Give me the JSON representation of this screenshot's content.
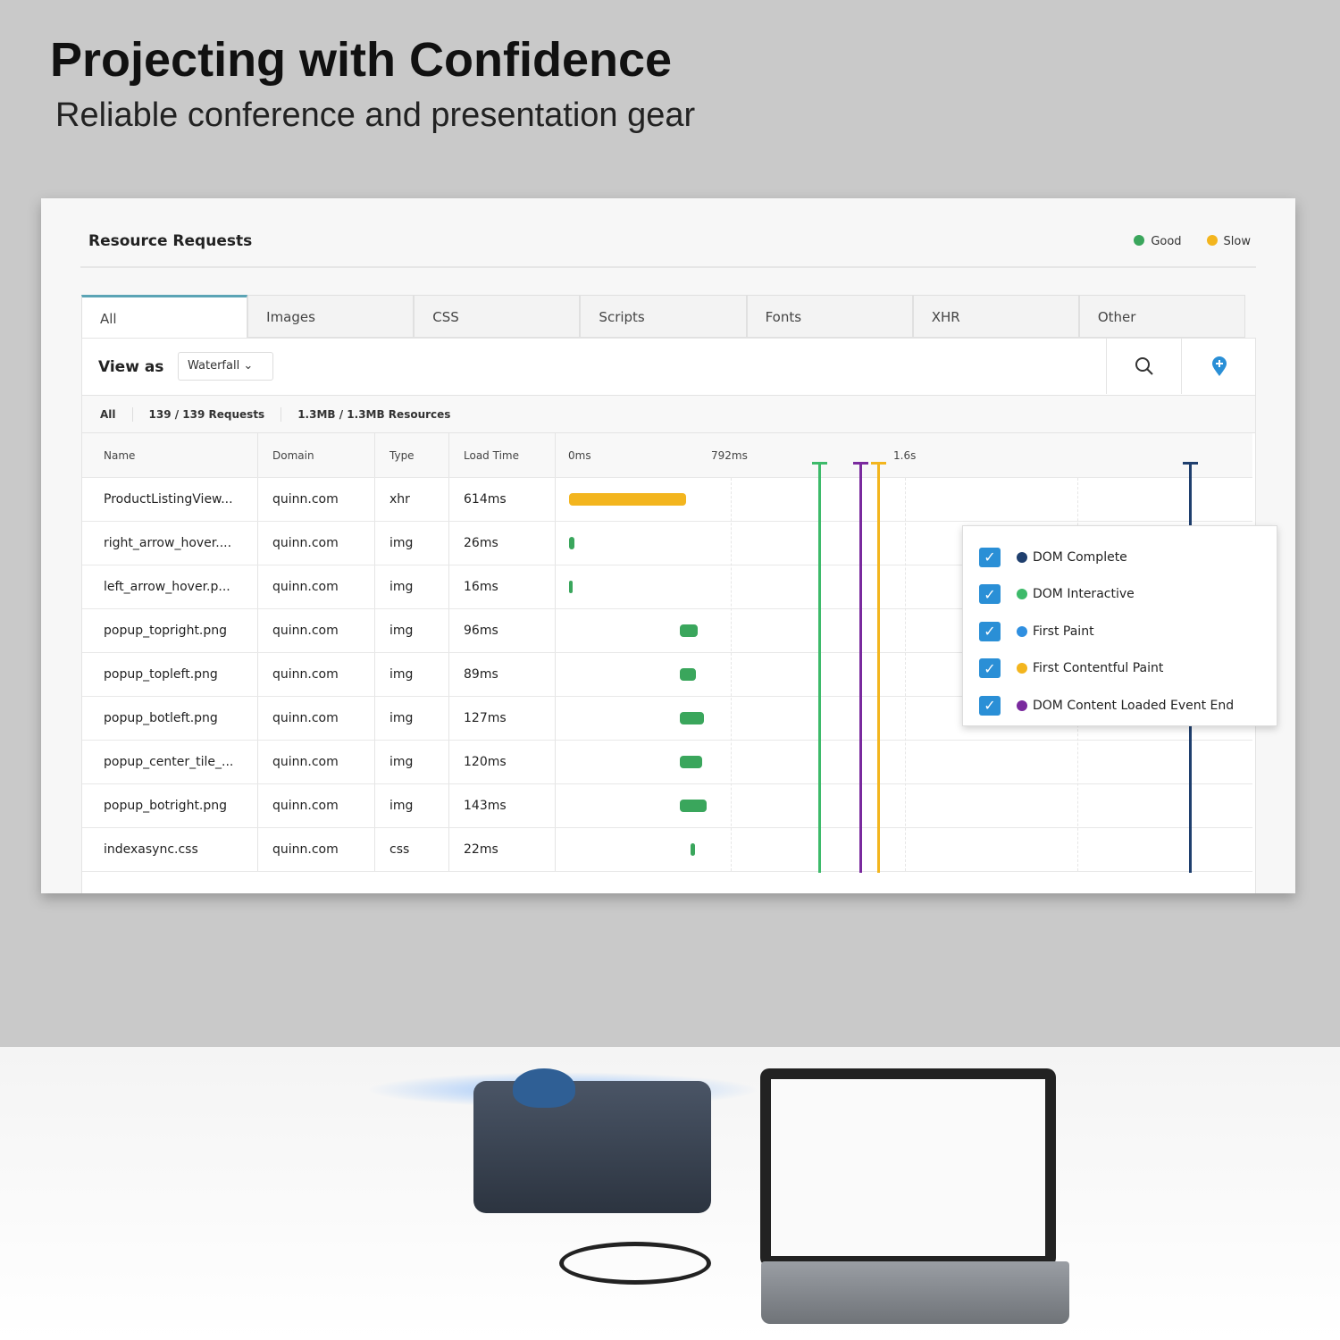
{
  "headline": "Projecting with Confidence",
  "subheadline": "Reliable conference and presentation gear",
  "ui": {
    "title": "Resource Requests",
    "legend": [
      {
        "label": "Good",
        "color": "#3aa65c"
      },
      {
        "label": "Slow",
        "color": "#f3b51e"
      }
    ],
    "tabs": [
      "All",
      "Images",
      "CSS",
      "Scripts",
      "Fonts",
      "XHR",
      "Other"
    ],
    "active_tab": "All",
    "view_as_label": "View as",
    "view_as_value": "Waterfall",
    "summary": {
      "filter": "All",
      "requests": "139 / 139 Requests",
      "resources": "1.3MB / 1.3MB Resources"
    },
    "columns": [
      "Name",
      "Domain",
      "Type",
      "Load Time"
    ],
    "timeline_ticks": [
      "0ms",
      "792ms",
      "1.6s"
    ],
    "rows": [
      {
        "name": "ProductListingView...",
        "domain": "quinn.com",
        "type": "xhr",
        "load": "614ms",
        "start_ms": 0,
        "dur_ms": 614,
        "status": "slow"
      },
      {
        "name": "right_arrow_hover....",
        "domain": "quinn.com",
        "type": "img",
        "load": "26ms",
        "start_ms": 0,
        "dur_ms": 26,
        "status": "good"
      },
      {
        "name": "left_arrow_hover.p...",
        "domain": "quinn.com",
        "type": "img",
        "load": "16ms",
        "start_ms": 0,
        "dur_ms": 16,
        "status": "good"
      },
      {
        "name": "popup_topright.png",
        "domain": "quinn.com",
        "type": "img",
        "load": "96ms",
        "start_ms": 580,
        "dur_ms": 96,
        "status": "good"
      },
      {
        "name": "popup_topleft.png",
        "domain": "quinn.com",
        "type": "img",
        "load": "89ms",
        "start_ms": 580,
        "dur_ms": 89,
        "status": "good"
      },
      {
        "name": "popup_botleft.png",
        "domain": "quinn.com",
        "type": "img",
        "load": "127ms",
        "start_ms": 580,
        "dur_ms": 127,
        "status": "good"
      },
      {
        "name": "popup_center_tile_...",
        "domain": "quinn.com",
        "type": "img",
        "load": "120ms",
        "start_ms": 580,
        "dur_ms": 120,
        "status": "good"
      },
      {
        "name": "popup_botright.png",
        "domain": "quinn.com",
        "type": "img",
        "load": "143ms",
        "start_ms": 580,
        "dur_ms": 143,
        "status": "good"
      },
      {
        "name": "indexasync.css",
        "domain": "quinn.com",
        "type": "css",
        "load": "22ms",
        "start_ms": 640,
        "dur_ms": 22,
        "status": "good"
      }
    ],
    "markers": [
      {
        "label": "DOM Complete",
        "color": "#1f3f6e",
        "time_ms": 3260,
        "checked": true
      },
      {
        "label": "DOM Interactive",
        "color": "#3dba6a",
        "time_ms": 1310,
        "checked": true
      },
      {
        "label": "First Paint",
        "color": "#2f8fe0",
        "checked": true
      },
      {
        "label": "First Contentful Paint",
        "color": "#f3b51e",
        "time_ms": 1620,
        "checked": true
      },
      {
        "label": "DOM Content Loaded Event End",
        "color": "#7a2a9e",
        "time_ms": 1525,
        "checked": true
      }
    ]
  }
}
